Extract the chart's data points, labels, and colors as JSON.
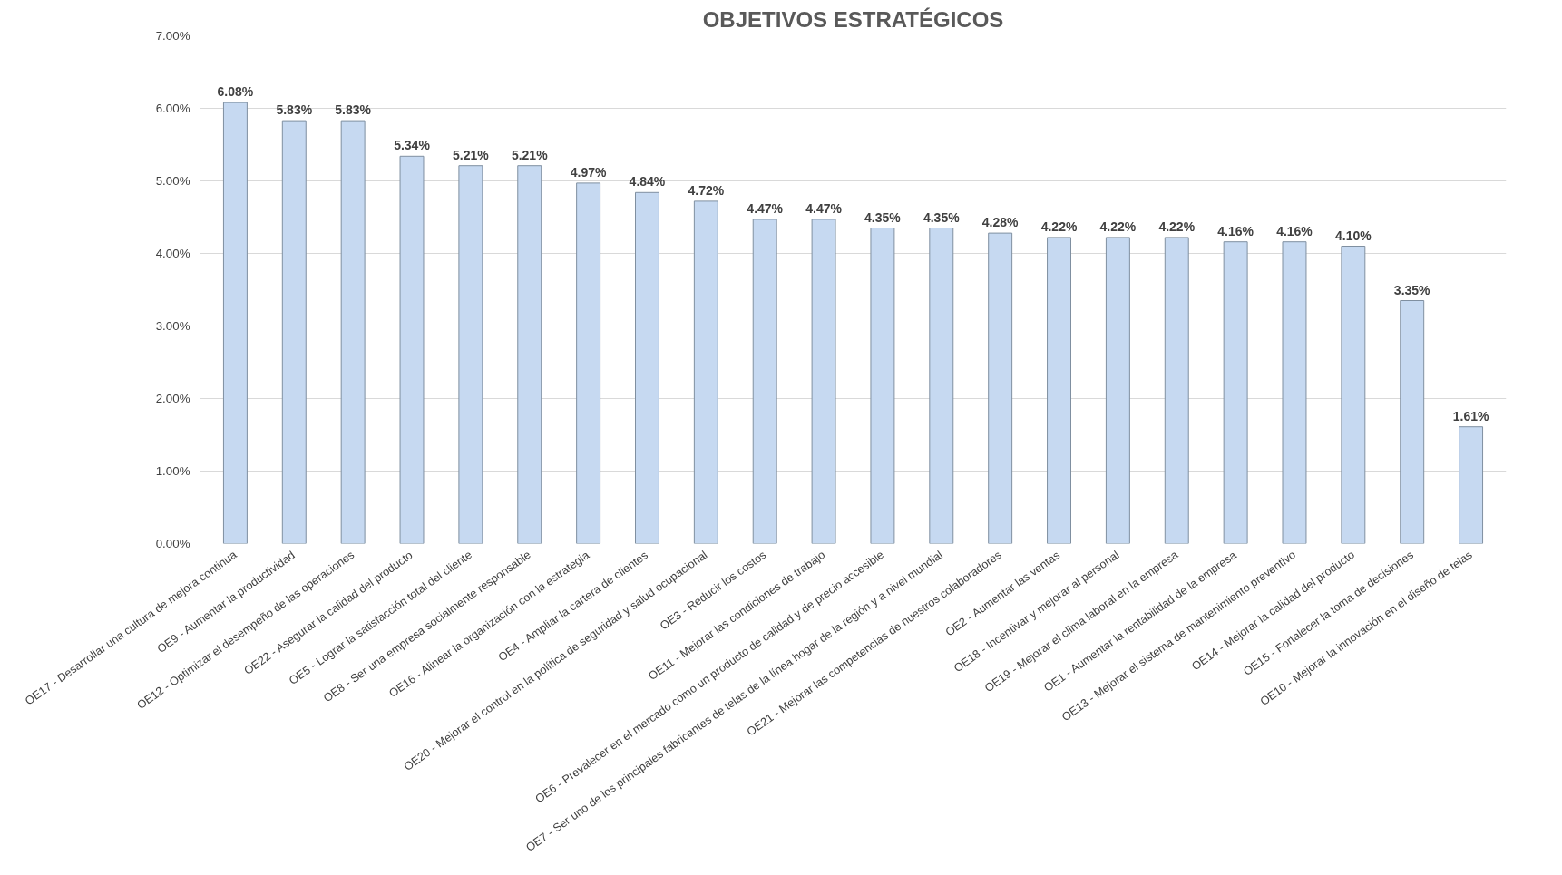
{
  "chart_data": {
    "type": "bar",
    "title": "OBJETIVOS ESTRATÉGICOS",
    "categories": [
      "OE17 - Desarrollar una cultura de mejora continua",
      "OE9 - Aumentar la productividad",
      "OE12 - Optimizar el desempeño de las operaciones",
      "OE22 - Asegurar la calidad del producto",
      "OE5 - Lograr la satisfacción total del cliente",
      "OE8 - Ser una empresa socialmente responsable",
      "OE16 - Alinear la organización con la estrategia",
      "OE4 - Ampliar la cartera de clientes",
      "OE20 - Mejorar el control en la política de seguridad y salud ocupacional",
      "OE3 - Reducir los costos",
      "OE11 - Mejorar las condiciones de trabajo",
      "OE6 - Prevalecer en el mercado como un producto de calidad y de precio accesible",
      "OE7 - Ser uno de los principales fabricantes de telas de la línea hogar de la región y a nivel mundial",
      "OE21 - Mejorar las competencias de nuestros colaboradores",
      "OE2 - Aumentar las ventas",
      "OE18 - Incentivar y mejorar al personal",
      "OE19 - Mejorar el clima laboral en la empresa",
      "OE1 - Aumentar la rentabilidad de la empresa",
      "OE13 - Mejorar el sistema de mantenimiento preventivo",
      "OE14 - Mejorar la calidad del producto",
      "OE15 - Fortalecer la toma de decisiones",
      "OE10 - Mejorar la innovación en el diseño de telas"
    ],
    "values": [
      6.08,
      5.83,
      5.83,
      5.34,
      5.21,
      5.21,
      4.97,
      4.84,
      4.72,
      4.47,
      4.47,
      4.35,
      4.35,
      4.28,
      4.22,
      4.22,
      4.22,
      4.16,
      4.16,
      4.1,
      3.35,
      1.61
    ],
    "value_labels": [
      "6.08%",
      "5.83%",
      "5.83%",
      "5.34%",
      "5.21%",
      "5.21%",
      "4.97%",
      "4.84%",
      "4.72%",
      "4.47%",
      "4.47%",
      "4.35%",
      "4.35%",
      "4.28%",
      "4.22%",
      "4.22%",
      "4.22%",
      "4.16%",
      "4.16%",
      "4.10%",
      "3.35%",
      "1.61%"
    ],
    "color": "#c6d9f1",
    "ylim": [
      0,
      7
    ],
    "yticks": [
      {
        "value": 0,
        "label": "0.00%"
      },
      {
        "value": 1,
        "label": "1.00%"
      },
      {
        "value": 2,
        "label": "2.00%"
      },
      {
        "value": 3,
        "label": "3.00%"
      },
      {
        "value": 4,
        "label": "4.00%"
      },
      {
        "value": 5,
        "label": "5.00%"
      },
      {
        "value": 6,
        "label": "6.00%"
      },
      {
        "value": 7,
        "label": "7.00%"
      }
    ],
    "grid": "y"
  }
}
